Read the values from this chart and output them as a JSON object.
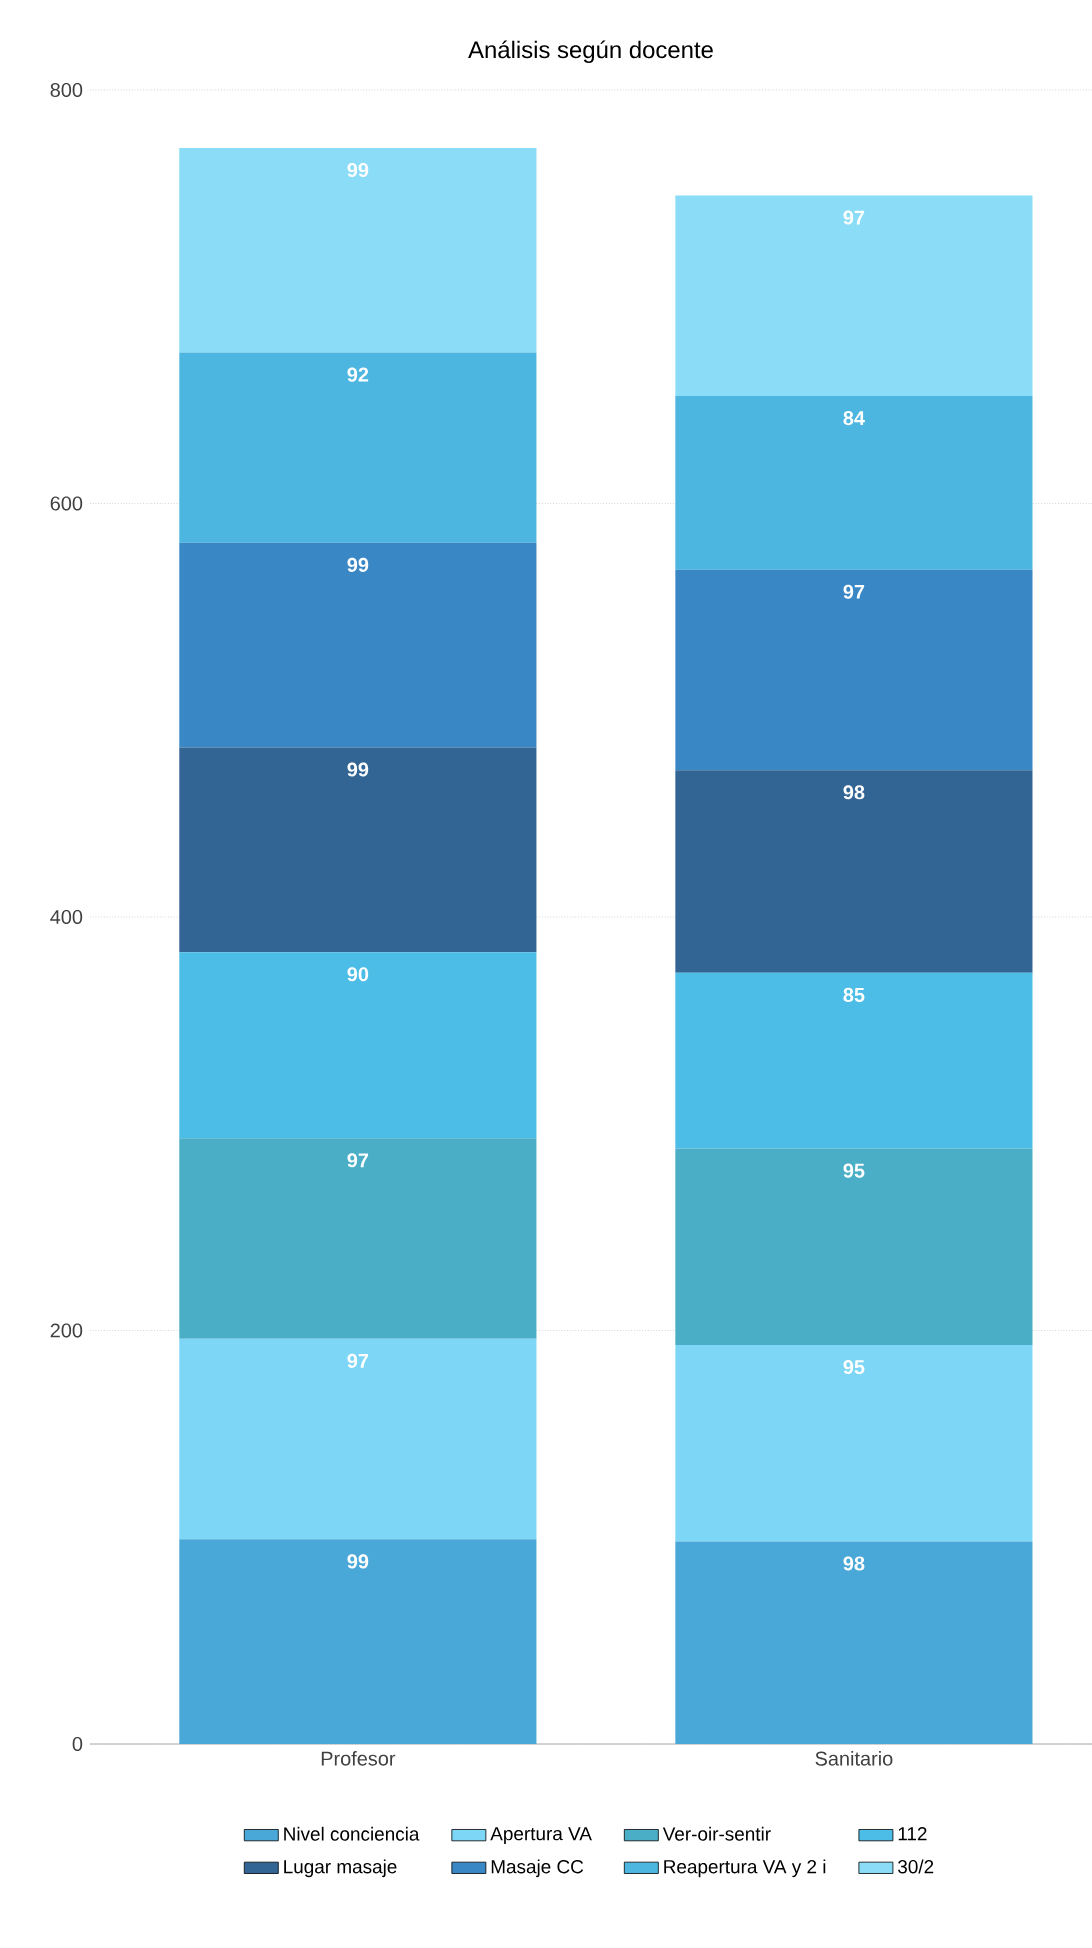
{
  "chart_data": {
    "type": "bar",
    "title": "Análisis según docente",
    "stacked": true,
    "categories": [
      "Profesor",
      "Sanitario"
    ],
    "series": [
      {
        "name": "Nivel conciencia",
        "color": "#4aa8d8",
        "values": [
          99,
          98
        ]
      },
      {
        "name": "Apertura VA",
        "color": "#7dd6f5",
        "values": [
          97,
          95
        ]
      },
      {
        "name": "Ver-oir-sentir",
        "color": "#4aaec6",
        "values": [
          97,
          95
        ]
      },
      {
        "name": "112",
        "color": "#4cbde6",
        "values": [
          90,
          85
        ]
      },
      {
        "name": "Lugar masaje",
        "color": "#336594",
        "values": [
          99,
          98
        ]
      },
      {
        "name": "Masaje CC",
        "color": "#3a87c6",
        "values": [
          99,
          97
        ]
      },
      {
        "name": "Reapertura VA y 2 i",
        "color": "#4db6e0",
        "values": [
          92,
          84
        ]
      },
      {
        "name": "30/2",
        "color": "#8adcf7",
        "values": [
          99,
          97
        ]
      }
    ],
    "ylim": [
      0,
      800
    ],
    "yticks": [
      0,
      200,
      400,
      600,
      800
    ],
    "grid": "y",
    "legend": "bottom",
    "data_labels": true
  }
}
